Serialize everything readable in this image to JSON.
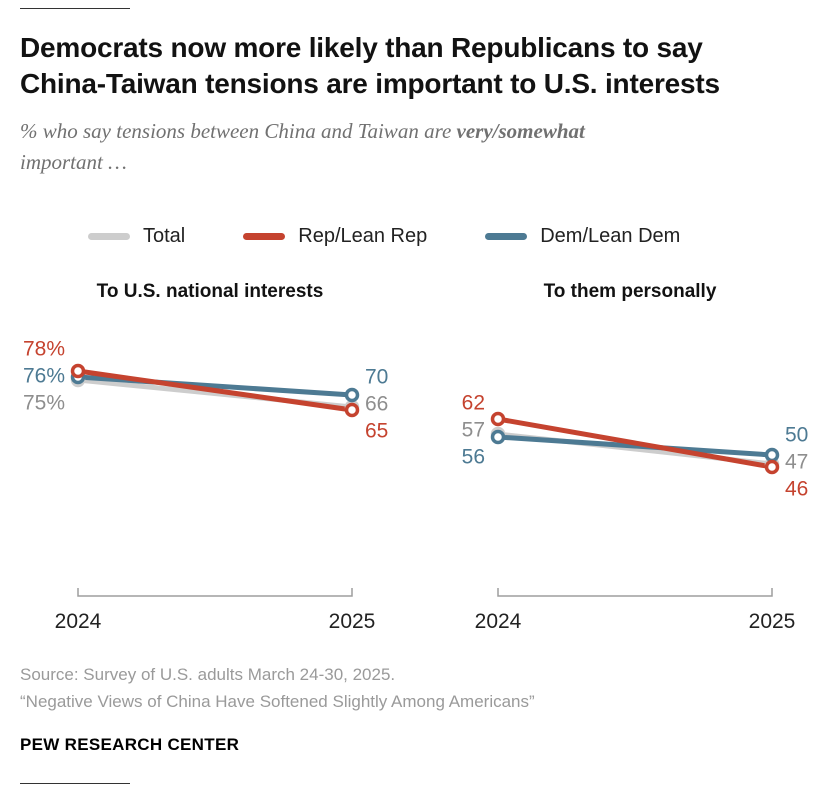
{
  "header": {
    "title_line1": "Democrats now more likely than Republicans to say",
    "title_line2": "China-Taiwan tensions are important to U.S. interests",
    "subtitle_prefix": "% who say tensions between China and Taiwan are ",
    "subtitle_bold": "very/somewhat",
    "subtitle_line2": "important …"
  },
  "legend": {
    "position": "top",
    "items": [
      {
        "label": "Total",
        "color": "#cdcdcd"
      },
      {
        "label": "Rep/Lean Rep",
        "color": "#c5432f"
      },
      {
        "label": "Dem/Lean Dem",
        "color": "#4d7a93"
      }
    ]
  },
  "chart_data": {
    "type": "line",
    "x": [
      "2024",
      "2025"
    ],
    "y_unit": "%",
    "grid": false,
    "legend_position": "top",
    "panels": [
      {
        "title": "To U.S. national interests",
        "series": [
          {
            "name": "Total",
            "color": "#cdcdcd",
            "label_color": "#8e8e8e",
            "values": [
              75,
              66
            ],
            "labels": [
              "75%",
              "66"
            ]
          },
          {
            "name": "Dem/Lean Dem",
            "color": "#4d7a93",
            "label_color": "#4d7a93",
            "values": [
              76,
              70
            ],
            "labels": [
              "76%",
              "70"
            ]
          },
          {
            "name": "Rep/Lean Rep",
            "color": "#c5432f",
            "label_color": "#c5432f",
            "values": [
              78,
              65
            ],
            "labels": [
              "78%",
              "65"
            ]
          }
        ]
      },
      {
        "title": "To them personally",
        "series": [
          {
            "name": "Total",
            "color": "#cdcdcd",
            "label_color": "#8e8e8e",
            "values": [
              57,
              47
            ],
            "labels": [
              "57",
              "47"
            ]
          },
          {
            "name": "Dem/Lean Dem",
            "color": "#4d7a93",
            "label_color": "#4d7a93",
            "values": [
              56,
              50
            ],
            "labels": [
              "56",
              "50"
            ]
          },
          {
            "name": "Rep/Lean Rep",
            "color": "#c5432f",
            "label_color": "#c5432f",
            "values": [
              62,
              46
            ],
            "labels": [
              "62",
              "46"
            ]
          }
        ]
      }
    ]
  },
  "footer": {
    "source": "Source: Survey of U.S. adults March 24-30, 2025.",
    "note": "“Negative Views of China Have Softened Slightly Among Americans”",
    "brand": "PEW RESEARCH CENTER"
  }
}
